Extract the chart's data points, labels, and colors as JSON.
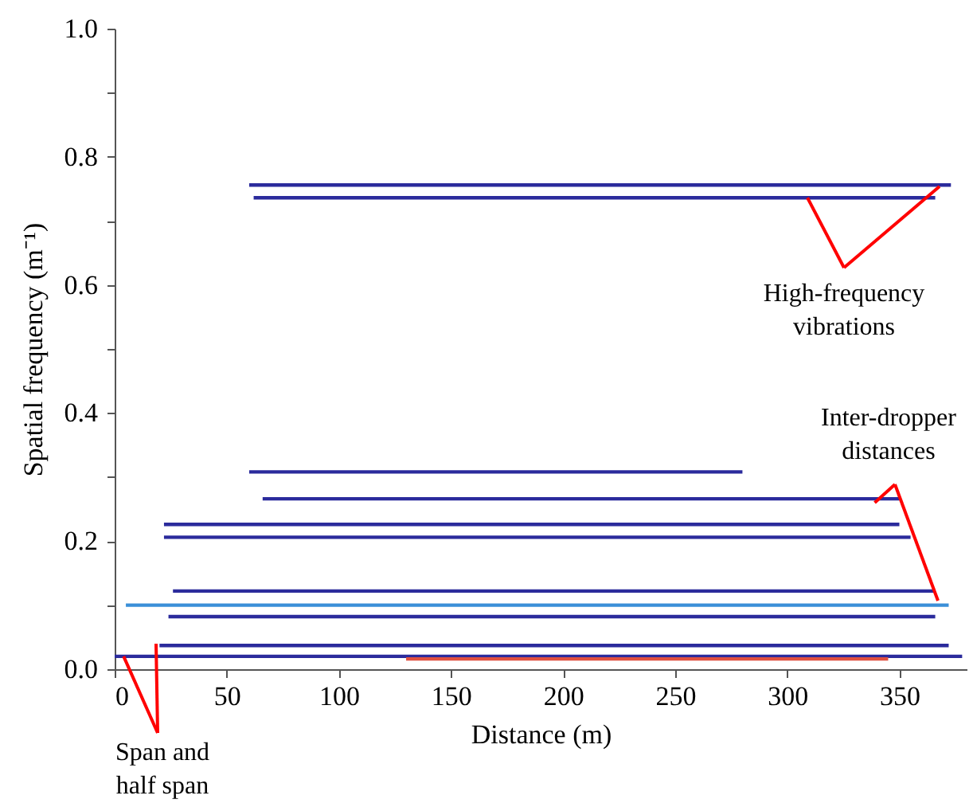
{
  "chart_data": {
    "type": "line",
    "xlabel": "Distance (m)",
    "ylabel": "Spatial frequency (m⁻¹)",
    "xlim": [
      0,
      380
    ],
    "xticks": [
      0,
      50,
      100,
      150,
      200,
      250,
      300,
      350
    ],
    "ylim": [
      0,
      1
    ],
    "yticks": [
      {
        "value": 0,
        "label": "0.0"
      },
      {
        "value": 0.1,
        "label": null
      },
      0.2,
      {
        "value": 0.3,
        "label": null
      },
      0.4,
      {
        "value": 0.5,
        "label": null
      },
      0.6,
      {
        "value": 0.7,
        "label": null
      },
      0.8,
      {
        "value": 0.9,
        "label": null
      },
      {
        "value": 1,
        "label": "1.0"
      }
    ],
    "marker": "none",
    "line_style": "solid",
    "annotations": [
      {
        "text": "High-frequency\nvibrations",
        "x": 309,
        "y": 0.736
      },
      {
        "text": "Inter-dropper\ndistances",
        "x": 339,
        "y": 0.26
      },
      {
        "text": "Span and\nhalf span",
        "x": 4,
        "y": 0.02
      }
    ],
    "series": [
      {
        "color": "#2b2b9c",
        "x": [
          60,
          373
        ],
        "values": [
          0.756,
          0.756
        ]
      },
      {
        "color": "#2b2b9c",
        "x": [
          62,
          366
        ],
        "values": [
          0.736,
          0.736
        ]
      },
      {
        "color": "#2b2b9c",
        "x": [
          60,
          280
        ],
        "values": [
          0.308,
          0.308
        ]
      },
      {
        "color": "#2b2b9c",
        "x": [
          66,
          350
        ],
        "values": [
          0.266,
          0.266
        ]
      },
      {
        "color": "#2b2b9c",
        "x": [
          22,
          350
        ],
        "values": [
          0.226,
          0.226
        ]
      },
      {
        "color": "#2b2b9c",
        "x": [
          22,
          355
        ],
        "values": [
          0.206,
          0.206
        ]
      },
      {
        "color": "#2b2b9c",
        "x": [
          26,
          366
        ],
        "values": [
          0.122,
          0.122
        ]
      },
      {
        "color": "#3a8fd8",
        "x": [
          5,
          372
        ],
        "values": [
          0.1,
          0.1
        ]
      },
      {
        "color": "#2b2b9c",
        "x": [
          24,
          366
        ],
        "values": [
          0.082,
          0.082
        ]
      },
      {
        "color": "#2b2b9c",
        "x": [
          20,
          372
        ],
        "values": [
          0.037,
          0.037
        ]
      },
      {
        "color": "#2b2b9c",
        "x": [
          0,
          378
        ],
        "values": [
          0.02,
          0.02
        ]
      },
      {
        "color": "#e05040",
        "x": [
          130,
          345
        ],
        "values": [
          0.016,
          0.016
        ]
      }
    ]
  }
}
